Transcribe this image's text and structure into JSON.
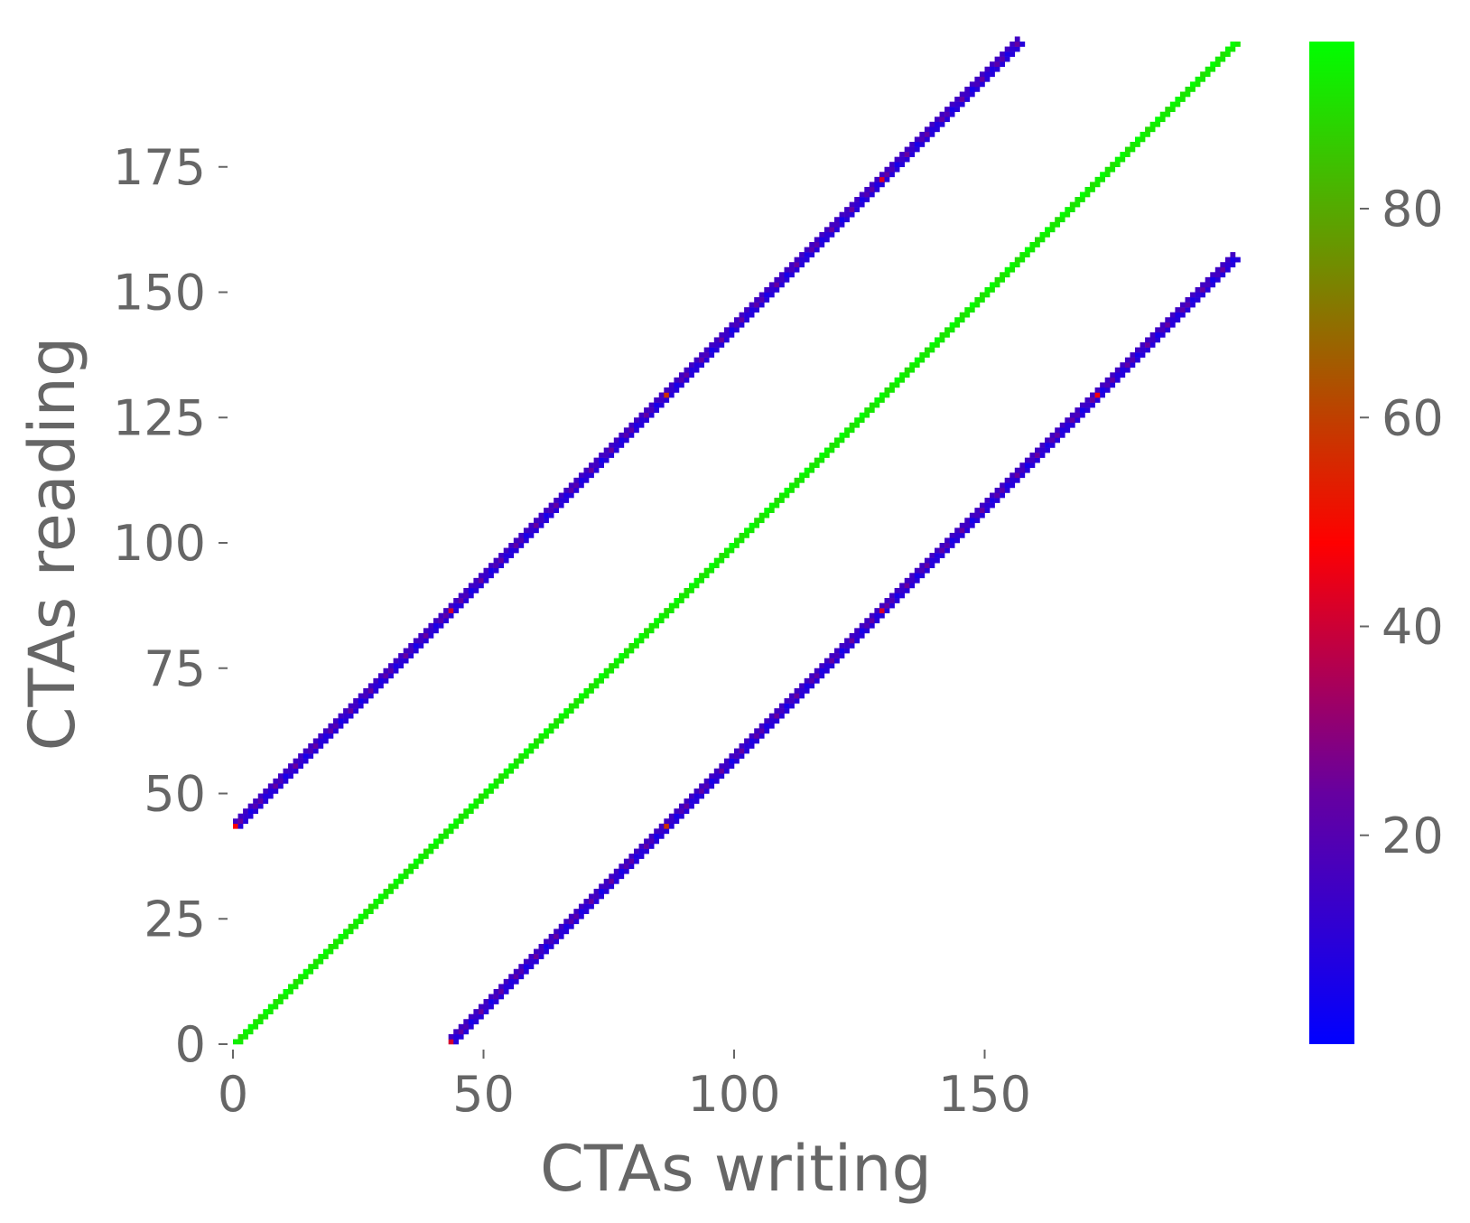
{
  "chart_data": {
    "type": "heatmap",
    "title": "",
    "xlabel": "CTAs writing",
    "ylabel": "CTAs reading",
    "xlim": [
      0,
      200
    ],
    "ylim": [
      0,
      200
    ],
    "xticks": [
      0,
      50,
      100,
      150
    ],
    "yticks": [
      0,
      25,
      50,
      75,
      100,
      125,
      150,
      175
    ],
    "grid": false,
    "diagonals": [
      {
        "offset": 43,
        "start": 0,
        "end": 157,
        "value_range": [
          5,
          60
        ]
      },
      {
        "offset": 0,
        "start": 0,
        "end": 199,
        "value_range": [
          90,
          96
        ]
      },
      {
        "offset": -43,
        "start": 43,
        "end": 199,
        "value_range": [
          5,
          60
        ]
      }
    ],
    "colorbar": {
      "min": 0,
      "max": 96,
      "ticks": [
        20,
        40,
        60,
        80
      ],
      "colors": [
        "#0000ff",
        "#6600a0",
        "#ff0000",
        "#7f7f00",
        "#00ff00"
      ]
    }
  }
}
